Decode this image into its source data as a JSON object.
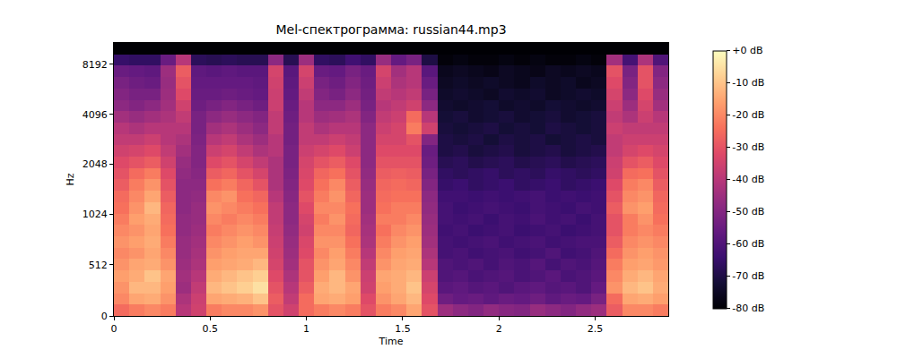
{
  "chart_data": {
    "type": "heatmap",
    "title": "Mel-спектрограмма: russian44.mp3",
    "x_label": "Time",
    "y_label": "Hz",
    "log": "y",
    "grid": false,
    "xlim": [
      0,
      2.88
    ],
    "xticks": [
      0,
      0.5,
      1,
      1.5,
      2,
      2.5
    ],
    "ylim": [
      0,
      11025
    ],
    "yticks": [
      0,
      512,
      1024,
      2048,
      4096,
      8192
    ],
    "x": [
      0.04,
      0.12,
      0.2,
      0.28,
      0.36,
      0.44,
      0.52,
      0.6,
      0.68,
      0.76,
      0.84,
      0.92,
      1.0,
      1.08,
      1.16,
      1.24,
      1.32,
      1.4,
      1.48,
      1.56,
      1.64,
      1.72,
      1.8,
      1.88,
      1.96,
      2.04,
      2.12,
      2.2,
      2.28,
      2.36,
      2.44,
      2.52,
      2.6,
      2.68,
      2.76,
      2.84
    ],
    "y": [
      57,
      171,
      284,
      398,
      512,
      626,
      740,
      853,
      967,
      1119,
      1310,
      1534,
      1796,
      2103,
      2462,
      2884,
      3375,
      3953,
      4630,
      5419,
      6346,
      7433,
      8700,
      10190
    ],
    "z": [
      [
        -25,
        -22,
        -20,
        -22,
        -40,
        -35,
        -22,
        -20,
        -20,
        -18,
        -30,
        -35,
        -25,
        -22,
        -20,
        -22,
        -30,
        -22,
        -20,
        -15,
        -30,
        -45,
        -48,
        -50,
        -47,
        -49,
        -50,
        -46,
        -48,
        -50,
        -47,
        -45,
        -28,
        -20,
        -20,
        -22
      ],
      [
        -20,
        -15,
        -14,
        -18,
        -42,
        -36,
        -15,
        -14,
        -13,
        -10,
        -28,
        -38,
        -25,
        -15,
        -14,
        -16,
        -32,
        -18,
        -15,
        -12,
        -32,
        -54,
        -56,
        -55,
        -57,
        -55,
        -56,
        -54,
        -57,
        -55,
        -56,
        -52,
        -25,
        -15,
        -14,
        -16
      ],
      [
        -18,
        -12,
        -12,
        -16,
        -45,
        -38,
        -12,
        -10,
        -8,
        -5,
        -30,
        -40,
        -28,
        -14,
        -12,
        -15,
        -35,
        -16,
        -14,
        -10,
        -34,
        -58,
        -57,
        -59,
        -58,
        -60,
        -58,
        -57,
        -59,
        -58,
        -60,
        -56,
        -18,
        -12,
        -10,
        -14
      ],
      [
        -16,
        -14,
        -10,
        -15,
        -44,
        -40,
        -14,
        -12,
        -10,
        -8,
        -32,
        -42,
        -30,
        -16,
        -12,
        -18,
        -36,
        -15,
        -14,
        -12,
        -36,
        -60,
        -59,
        -61,
        -60,
        -59,
        -61,
        -60,
        -58,
        -61,
        -60,
        -58,
        -20,
        -14,
        -12,
        -15
      ],
      [
        -18,
        -15,
        -14,
        -18,
        -45,
        -42,
        -16,
        -15,
        -14,
        -12,
        -34,
        -44,
        -30,
        -18,
        -15,
        -20,
        -38,
        -18,
        -15,
        -14,
        -40,
        -60,
        -61,
        -60,
        -62,
        -60,
        -61,
        -59,
        -62,
        -60,
        -61,
        -59,
        -22,
        -16,
        -15,
        -17
      ],
      [
        -20,
        -18,
        -15,
        -20,
        -46,
        -43,
        -18,
        -16,
        -15,
        -15,
        -35,
        -45,
        -32,
        -20,
        -16,
        -22,
        -40,
        -20,
        -16,
        -15,
        -42,
        -62,
        -61,
        -63,
        -62,
        -61,
        -63,
        -62,
        -60,
        -63,
        -62,
        -60,
        -25,
        -18,
        -16,
        -18
      ],
      [
        -18,
        -16,
        -14,
        -22,
        -46,
        -44,
        -20,
        -18,
        -16,
        -18,
        -36,
        -46,
        -33,
        -18,
        -18,
        -24,
        -42,
        -22,
        -18,
        -16,
        -44,
        -62,
        -63,
        -62,
        -61,
        -63,
        -62,
        -61,
        -63,
        -62,
        -61,
        -61,
        -28,
        -20,
        -18,
        -20
      ],
      [
        -20,
        -18,
        -15,
        -24,
        -47,
        -45,
        -22,
        -20,
        -18,
        -20,
        -37,
        -47,
        -35,
        -20,
        -20,
        -26,
        -43,
        -24,
        -20,
        -18,
        -45,
        -63,
        -62,
        -64,
        -63,
        -62,
        -64,
        -63,
        -62,
        -64,
        -63,
        -62,
        -30,
        -22,
        -20,
        -22
      ],
      [
        -22,
        -16,
        -14,
        -25,
        -47,
        -46,
        -20,
        -22,
        -20,
        -22,
        -38,
        -48,
        -34,
        -22,
        -18,
        -25,
        -44,
        -22,
        -22,
        -20,
        -46,
        -62,
        -63,
        -62,
        -64,
        -62,
        -63,
        -61,
        -63,
        -62,
        -64,
        -62,
        -30,
        -22,
        -18,
        -24
      ],
      [
        -24,
        -18,
        -12,
        -26,
        -48,
        -46,
        -18,
        -20,
        -22,
        -24,
        -38,
        -48,
        -32,
        -20,
        -20,
        -24,
        -45,
        -24,
        -22,
        -22,
        -47,
        -62,
        -64,
        -63,
        -62,
        -63,
        -64,
        -62,
        -63,
        -64,
        -62,
        -63,
        -28,
        -18,
        -16,
        -25
      ],
      [
        -25,
        -20,
        -15,
        -28,
        -48,
        -47,
        -20,
        -18,
        -24,
        -26,
        -40,
        -49,
        -30,
        -22,
        -18,
        -26,
        -45,
        -25,
        -24,
        -24,
        -48,
        -63,
        -63,
        -64,
        -63,
        -64,
        -63,
        -62,
        -64,
        -63,
        -64,
        -63,
        -30,
        -20,
        -18,
        -26
      ],
      [
        -28,
        -22,
        -18,
        -30,
        -48,
        -48,
        -24,
        -22,
        -26,
        -30,
        -42,
        -50,
        -32,
        -24,
        -20,
        -28,
        -46,
        -26,
        -25,
        -26,
        -50,
        -65,
        -64,
        -66,
        -65,
        -64,
        -66,
        -65,
        -64,
        -66,
        -65,
        -64,
        -32,
        -22,
        -20,
        -28
      ],
      [
        -30,
        -25,
        -22,
        -32,
        -47,
        -49,
        -28,
        -26,
        -30,
        -34,
        -42,
        -51,
        -33,
        -26,
        -24,
        -30,
        -47,
        -28,
        -27,
        -28,
        -52,
        -66,
        -67,
        -66,
        -65,
        -67,
        -66,
        -67,
        -65,
        -66,
        -67,
        -66,
        -35,
        -25,
        -24,
        -30
      ],
      [
        -32,
        -30,
        -28,
        -35,
        -46,
        -50,
        -32,
        -30,
        -34,
        -38,
        -42,
        -52,
        -34,
        -30,
        -28,
        -32,
        -48,
        -30,
        -30,
        -30,
        -54,
        -68,
        -67,
        -69,
        -68,
        -67,
        -69,
        -68,
        -67,
        -69,
        -68,
        -67,
        -36,
        -30,
        -28,
        -32
      ],
      [
        -35,
        -34,
        -32,
        -38,
        -44,
        -50,
        -36,
        -34,
        -38,
        -42,
        -40,
        -52,
        -36,
        -34,
        -32,
        -36,
        -48,
        -32,
        -32,
        -32,
        -55,
        -70,
        -69,
        -71,
        -70,
        -69,
        -71,
        -70,
        -69,
        -71,
        -70,
        -69,
        -38,
        -34,
        -32,
        -34
      ],
      [
        -38,
        -38,
        -36,
        -40,
        -42,
        -51,
        -40,
        -38,
        -42,
        -45,
        -40,
        -53,
        -38,
        -38,
        -36,
        -38,
        -48,
        -34,
        -34,
        -30,
        -50,
        -70,
        -71,
        -70,
        -72,
        -70,
        -71,
        -70,
        -72,
        -71,
        -70,
        -71,
        -38,
        -36,
        -36,
        -36
      ],
      [
        -40,
        -42,
        -40,
        -40,
        -40,
        -52,
        -44,
        -42,
        -45,
        -48,
        -38,
        -53,
        -38,
        -42,
        -40,
        -40,
        -48,
        -36,
        -34,
        -22,
        -35,
        -71,
        -72,
        -71,
        -70,
        -72,
        -71,
        -72,
        -70,
        -71,
        -72,
        -71,
        -36,
        -38,
        -38,
        -38
      ],
      [
        -44,
        -46,
        -44,
        -42,
        -38,
        -52,
        -48,
        -46,
        -48,
        -50,
        -38,
        -54,
        -40,
        -45,
        -44,
        -42,
        -50,
        -38,
        -36,
        -25,
        -40,
        -72,
        -71,
        -73,
        -72,
        -71,
        -73,
        -72,
        -71,
        -73,
        -72,
        -71,
        -38,
        -42,
        -36,
        -40
      ],
      [
        -48,
        -50,
        -48,
        -44,
        -35,
        -54,
        -52,
        -50,
        -52,
        -54,
        -36,
        -55,
        -40,
        -48,
        -48,
        -45,
        -52,
        -40,
        -38,
        -35,
        -48,
        -73,
        -74,
        -73,
        -72,
        -74,
        -73,
        -74,
        -72,
        -73,
        -74,
        -73,
        -36,
        -45,
        -34,
        -44
      ],
      [
        -50,
        -52,
        -52,
        -45,
        -32,
        -55,
        -55,
        -54,
        -55,
        -56,
        -36,
        -56,
        -38,
        -50,
        -52,
        -48,
        -53,
        -38,
        -40,
        -38,
        -52,
        -74,
        -73,
        -74,
        -75,
        -73,
        -74,
        -73,
        -75,
        -74,
        -73,
        -74,
        -34,
        -48,
        -32,
        -46
      ],
      [
        -52,
        -54,
        -55,
        -46,
        -30,
        -56,
        -56,
        -56,
        -56,
        -57,
        -35,
        -57,
        -36,
        -52,
        -54,
        -50,
        -54,
        -36,
        -42,
        -40,
        -55,
        -75,
        -74,
        -75,
        -74,
        -75,
        -76,
        -74,
        -75,
        -74,
        -76,
        -75,
        -32,
        -50,
        -30,
        -48
      ],
      [
        -55,
        -56,
        -57,
        -45,
        -28,
        -57,
        -58,
        -57,
        -58,
        -58,
        -34,
        -58,
        -34,
        -55,
        -56,
        -52,
        -55,
        -34,
        -44,
        -40,
        -58,
        -76,
        -75,
        -76,
        -77,
        -75,
        -76,
        -77,
        -75,
        -76,
        -75,
        -76,
        -30,
        -52,
        -30,
        -50
      ],
      [
        -65,
        -66,
        -66,
        -55,
        -40,
        -67,
        -68,
        -67,
        -68,
        -68,
        -48,
        -68,
        -45,
        -66,
        -67,
        -63,
        -66,
        -46,
        -56,
        -52,
        -70,
        -79,
        -78,
        -79,
        -79,
        -78,
        -79,
        -78,
        -79,
        -79,
        -78,
        -79,
        -44,
        -62,
        -42,
        -60
      ],
      [
        -80,
        -80,
        -80,
        -80,
        -80,
        -80,
        -80,
        -80,
        -80,
        -80,
        -80,
        -80,
        -80,
        -80,
        -80,
        -80,
        -80,
        -80,
        -80,
        -80,
        -80,
        -80,
        -80,
        -80,
        -80,
        -80,
        -80,
        -80,
        -80,
        -80,
        -80,
        -80,
        -80,
        -80,
        -80,
        -80
      ]
    ],
    "zlim": [
      -80,
      0
    ],
    "zticks": [
      {
        "value": 0,
        "label": "+0 dB"
      },
      {
        "value": -10,
        "label": "-10 dB"
      },
      {
        "value": -20,
        "label": "-20 dB"
      },
      {
        "value": -30,
        "label": "-30 dB"
      },
      {
        "value": -40,
        "label": "-40 dB"
      },
      {
        "value": -50,
        "label": "-50 dB"
      },
      {
        "value": -60,
        "label": "-60 dB"
      },
      {
        "value": -70,
        "label": "-70 dB"
      },
      {
        "value": -80,
        "label": "-80 dB"
      }
    ]
  }
}
